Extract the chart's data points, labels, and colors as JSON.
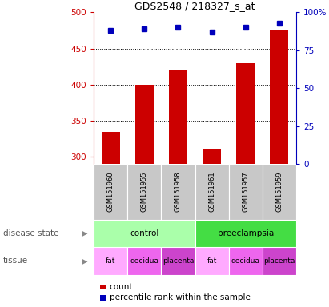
{
  "title": "GDS2548 / 218327_s_at",
  "samples": [
    "GSM151960",
    "GSM151955",
    "GSM151958",
    "GSM151961",
    "GSM151957",
    "GSM151959"
  ],
  "counts": [
    335,
    400,
    420,
    312,
    430,
    475
  ],
  "percentile_ranks": [
    88,
    89,
    90,
    87,
    90,
    93
  ],
  "ylim_left": [
    290,
    500
  ],
  "ylim_right": [
    0,
    100
  ],
  "yticks_left": [
    300,
    350,
    400,
    450,
    500
  ],
  "yticks_right": [
    0,
    25,
    50,
    75,
    100
  ],
  "bar_color": "#cc0000",
  "dot_color": "#0000bb",
  "disease_state": [
    {
      "label": "control",
      "span": [
        0,
        3
      ],
      "color": "#aaffaa"
    },
    {
      "label": "preeclampsia",
      "span": [
        3,
        6
      ],
      "color": "#44dd44"
    }
  ],
  "tissue": [
    {
      "label": "fat",
      "span": [
        0,
        1
      ],
      "color": "#ffaaff"
    },
    {
      "label": "decidua",
      "span": [
        1,
        2
      ],
      "color": "#ee66ee"
    },
    {
      "label": "placenta",
      "span": [
        2,
        3
      ],
      "color": "#cc44cc"
    },
    {
      "label": "fat",
      "span": [
        3,
        4
      ],
      "color": "#ffaaff"
    },
    {
      "label": "decidua",
      "span": [
        4,
        5
      ],
      "color": "#ee66ee"
    },
    {
      "label": "placenta",
      "span": [
        5,
        6
      ],
      "color": "#cc44cc"
    }
  ],
  "sample_bg_color": "#c8c8c8",
  "left_axis_color": "#cc0000",
  "right_axis_color": "#0000bb",
  "bar_width": 0.55
}
